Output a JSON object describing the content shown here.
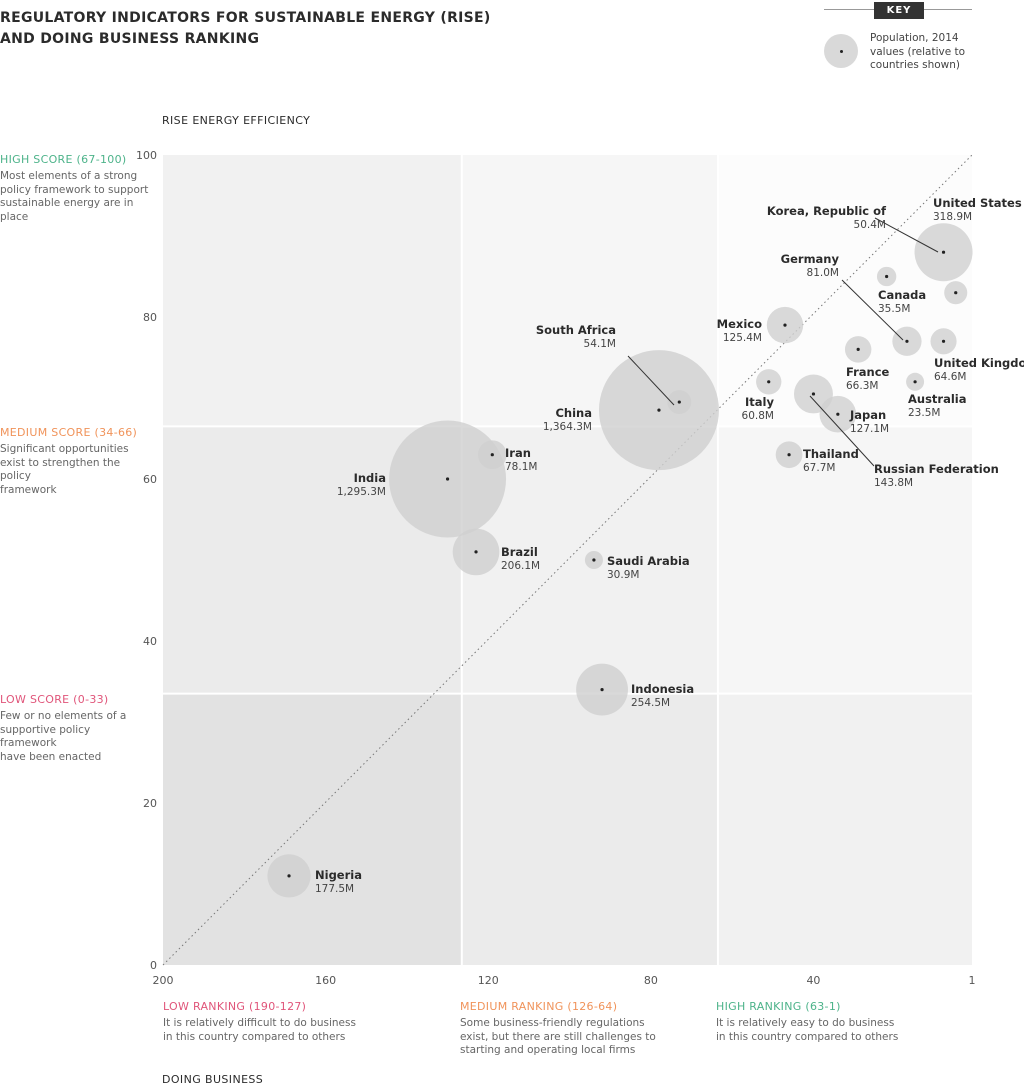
{
  "title_line1": "REGULATORY INDICATORS FOR SUSTAINABLE ENERGY (RISE)",
  "title_line2": "AND DOING BUSINESS RANKING",
  "key": {
    "label": "KEY",
    "text_lines": [
      "Population, 2014",
      "values (relative to",
      "countries shown)"
    ]
  },
  "y_axis_title": "RISE ENERGY EFFICIENCY",
  "x_axis_title": "DOING BUSINESS",
  "scores": [
    {
      "label": "HIGH SCORE (67-100)",
      "color": "#4db38a",
      "lines": [
        "Most elements of a strong",
        "policy framework to support",
        "sustainable energy are in place"
      ]
    },
    {
      "label": "MEDIUM SCORE (34-66)",
      "color": "#f0935a",
      "lines": [
        "Significant opportunities",
        "exist to strengthen the policy",
        "framework"
      ]
    },
    {
      "label": "LOW SCORE (0-33)",
      "color": "#e0557a",
      "lines": [
        "Few or no elements of a",
        "supportive policy framework",
        "have been enacted"
      ]
    }
  ],
  "rankings": [
    {
      "label": "LOW RANKING (190-127)",
      "color": "#e0557a",
      "lines": [
        "It is relatively difficult to do business",
        "in this country compared to others"
      ]
    },
    {
      "label": "MEDIUM RANKING (126-64)",
      "color": "#f0935a",
      "lines": [
        "Some business-friendly regulations",
        "exist, but there are still challenges to",
        "starting and operating local firms"
      ]
    },
    {
      "label": "HIGH RANKING (63-1)",
      "color": "#4db38a",
      "lines": [
        "It is relatively easy to do business",
        "in this country compared to others"
      ]
    }
  ],
  "chart_data": {
    "type": "scatter",
    "xlabel": "DOING BUSINESS",
    "ylabel": "RISE ENERGY EFFICIENCY",
    "xlim": [
      200,
      1
    ],
    "ylim": [
      0,
      100
    ],
    "x_ticks": [
      "200",
      "160",
      "120",
      "80",
      "40",
      "1"
    ],
    "x_tick_values": [
      200,
      160,
      120,
      80,
      40,
      1
    ],
    "y_ticks": [
      "100",
      "80",
      "60",
      "40",
      "20",
      "0"
    ],
    "y_tick_values": [
      100,
      80,
      60,
      40,
      20,
      0
    ],
    "y_thresholds": [
      33.5,
      66.5
    ],
    "x_thresholds": [
      126.5,
      63.5
    ],
    "bubble_size": "Population, 2014",
    "points": [
      {
        "country": "United States",
        "pop_label": "318.9M",
        "population": 318.9,
        "x": 8,
        "y": 88
      },
      {
        "country": "Korea, Republic of",
        "pop_label": "50.4M",
        "population": 50.4,
        "x": 5,
        "y": 83
      },
      {
        "country": "Canada",
        "pop_label": "35.5M",
        "population": 35.5,
        "x": 22,
        "y": 85
      },
      {
        "country": "Germany",
        "pop_label": "81.0M",
        "population": 81.0,
        "x": 17,
        "y": 77
      },
      {
        "country": "United Kingdom",
        "pop_label": "64.6M",
        "population": 64.6,
        "x": 8,
        "y": 77
      },
      {
        "country": "France",
        "pop_label": "66.3M",
        "population": 66.3,
        "x": 29,
        "y": 76
      },
      {
        "country": "Australia",
        "pop_label": "23.5M",
        "population": 23.5,
        "x": 15,
        "y": 72
      },
      {
        "country": "Mexico",
        "pop_label": "125.4M",
        "population": 125.4,
        "x": 47,
        "y": 79
      },
      {
        "country": "Italy",
        "pop_label": "60.8M",
        "population": 60.8,
        "x": 51,
        "y": 72
      },
      {
        "country": "Japan",
        "pop_label": "127.1M",
        "population": 127.1,
        "x": 34,
        "y": 68
      },
      {
        "country": "Russian Federation",
        "pop_label": "143.8M",
        "population": 143.8,
        "x": 40,
        "y": 70.5
      },
      {
        "country": "Thailand",
        "pop_label": "67.7M",
        "population": 67.7,
        "x": 46,
        "y": 63
      },
      {
        "country": "South Africa",
        "pop_label": "54.1M",
        "population": 54.1,
        "x": 73,
        "y": 69.5
      },
      {
        "country": "China",
        "pop_label": "1,364.3M",
        "population": 1364.3,
        "x": 78,
        "y": 68.5
      },
      {
        "country": "Iran",
        "pop_label": "78.1M",
        "population": 78.1,
        "x": 119,
        "y": 63
      },
      {
        "country": "India",
        "pop_label": "1,295.3M",
        "population": 1295.3,
        "x": 130,
        "y": 60
      },
      {
        "country": "Brazil",
        "pop_label": "206.1M",
        "population": 206.1,
        "x": 123,
        "y": 51
      },
      {
        "country": "Saudi Arabia",
        "pop_label": "30.9M",
        "population": 30.9,
        "x": 94,
        "y": 50
      },
      {
        "country": "Indonesia",
        "pop_label": "254.5M",
        "population": 254.5,
        "x": 92,
        "y": 34
      },
      {
        "country": "Nigeria",
        "pop_label": "177.5M",
        "population": 177.5,
        "x": 169,
        "y": 11
      }
    ]
  }
}
